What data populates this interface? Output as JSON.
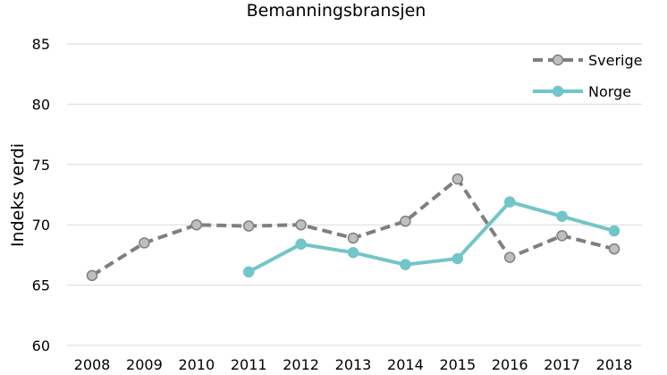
{
  "chart_data": {
    "type": "line",
    "title": "Bemanningsbransjen",
    "xlabel": "",
    "ylabel": "Indeks verdi",
    "ylim": [
      60,
      85
    ],
    "yticks": [
      60,
      65,
      70,
      75,
      80,
      85
    ],
    "grid": true,
    "legend_position": "top-right",
    "categories": [
      "2008",
      "2009",
      "2010",
      "2011",
      "2012",
      "2013",
      "2014",
      "2015",
      "2016",
      "2017",
      "2018"
    ],
    "series": [
      {
        "name": "Sverige",
        "values": [
          65.8,
          68.5,
          70.0,
          69.9,
          70.0,
          68.9,
          70.3,
          73.8,
          67.3,
          69.1,
          68.0
        ],
        "color": "#7f7f7f",
        "marker_fill": "#bfbfbf",
        "dashed": true
      },
      {
        "name": "Norge",
        "values": [
          null,
          null,
          null,
          66.1,
          68.4,
          67.7,
          66.7,
          67.2,
          71.9,
          70.7,
          69.5
        ],
        "color": "#72c5c8",
        "marker_fill": "#72c5c8",
        "dashed": false
      }
    ]
  }
}
